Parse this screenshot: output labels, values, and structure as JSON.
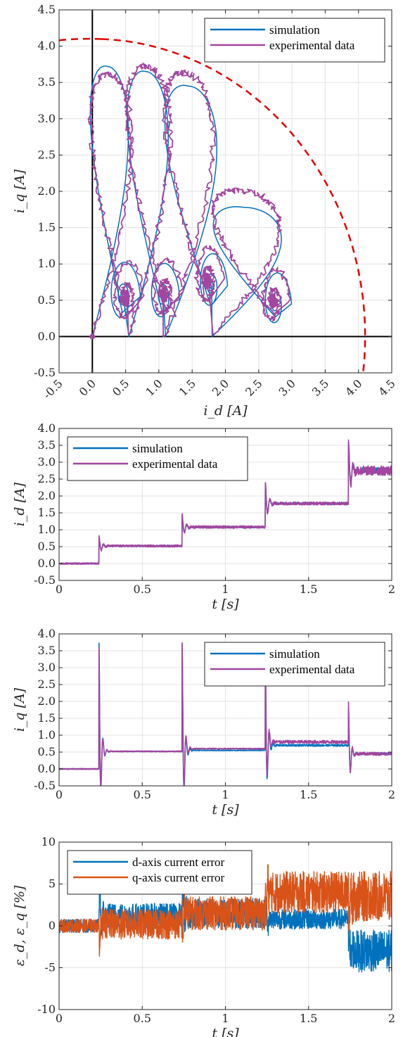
{
  "chart_data": [
    {
      "type": "line",
      "title": "",
      "xlabel": "i_d [A]",
      "ylabel": "i_q [A]",
      "xlim": [
        -0.5,
        4.5
      ],
      "ylim": [
        -0.5,
        4.5
      ],
      "xticks": [
        "-0.5",
        "0.0",
        "0.5",
        "1.0",
        "1.5",
        "2.0",
        "2.5",
        "3.0",
        "3.5",
        "4.0",
        "4.5"
      ],
      "yticks": [
        "-0.5",
        "0.0",
        "0.5",
        "1.0",
        "1.5",
        "2.0",
        "2.5",
        "3.0",
        "3.5",
        "4.0",
        "4.5"
      ],
      "grid": true,
      "legend_position": "top-right",
      "circle_limit_radius": 4.1,
      "series": [
        {
          "name": "simulation",
          "color": "#0072BD",
          "loops": [
            {
              "cx": 0.0,
              "peak": 3.72,
              "sx": 0.45,
              "sy": 0.55
            },
            {
              "cx": 0.55,
              "peak": 3.65,
              "sx": 1.05,
              "sy": 0.55
            },
            {
              "cx": 1.1,
              "peak": 3.45,
              "sx": 1.78,
              "sy": 0.7
            },
            {
              "cx": 1.8,
              "peak": 1.78,
              "sx": 2.75,
              "sy": 0.45
            }
          ]
        },
        {
          "name": "experimental data",
          "color": "#A2469F",
          "loops": [
            {
              "cx": 0.0,
              "peak": 3.6,
              "sx": 0.5,
              "sy": 0.55
            },
            {
              "cx": 0.55,
              "peak": 3.72,
              "sx": 1.08,
              "sy": 0.6
            },
            {
              "cx": 1.1,
              "peak": 3.62,
              "sx": 1.72,
              "sy": 0.78
            },
            {
              "cx": 1.8,
              "peak": 2.0,
              "sx": 2.72,
              "sy": 0.5
            }
          ]
        }
      ]
    },
    {
      "type": "line",
      "title": "",
      "xlabel": "t [s]",
      "ylabel": "i_d [A]",
      "xlim": [
        0,
        2
      ],
      "ylim": [
        -0.5,
        4.0
      ],
      "xticks": [
        "0",
        "0.5",
        "1",
        "1.5",
        "2"
      ],
      "yticks": [
        "-0.5",
        "0.0",
        "0.5",
        "1.0",
        "1.5",
        "2.0",
        "2.5",
        "3.0",
        "3.5",
        "4.0"
      ],
      "grid": true,
      "legend_position": "top-left",
      "step_times": [
        0,
        0.24,
        0.74,
        1.24,
        1.74
      ],
      "series": [
        {
          "name": "simulation",
          "color": "#0072BD",
          "levels": [
            0.0,
            0.52,
            1.08,
            1.78,
            2.75
          ],
          "overshoot": [
            0.0,
            0.78,
            1.42,
            2.38,
            3.6
          ]
        },
        {
          "name": "experimental data",
          "color": "#A2469F",
          "levels": [
            0.0,
            0.52,
            1.08,
            1.78,
            2.75
          ],
          "overshoot": [
            0.0,
            0.8,
            1.45,
            2.4,
            3.62
          ]
        }
      ]
    },
    {
      "type": "line",
      "title": "",
      "xlabel": "t [s]",
      "ylabel": "i_q [A]",
      "xlim": [
        0,
        2
      ],
      "ylim": [
        -0.5,
        4.0
      ],
      "xticks": [
        "0",
        "0.5",
        "1",
        "1.5",
        "2"
      ],
      "yticks": [
        "-0.5",
        "0.0",
        "0.5",
        "1.0",
        "1.5",
        "2.0",
        "2.5",
        "3.0",
        "3.5",
        "4.0"
      ],
      "grid": true,
      "legend_position": "top-right",
      "step_times": [
        0,
        0.24,
        0.74,
        1.24,
        1.74
      ],
      "series": [
        {
          "name": "simulation",
          "color": "#0072BD",
          "levels": [
            0.0,
            0.52,
            0.55,
            0.7,
            0.45
          ],
          "spikes": [
            0.0,
            3.72,
            3.72,
            3.45,
            1.78
          ]
        },
        {
          "name": "experimental data",
          "color": "#A2469F",
          "levels": [
            0.0,
            0.52,
            0.6,
            0.8,
            0.45
          ],
          "spikes": [
            0.0,
            3.6,
            3.72,
            3.62,
            2.0
          ]
        }
      ]
    },
    {
      "type": "line",
      "title": "",
      "xlabel": "t [s]",
      "ylabel": "ε_d, ε_q [%]",
      "xlim": [
        0,
        2
      ],
      "ylim": [
        -10,
        10
      ],
      "xticks": [
        "0",
        "0.5",
        "1",
        "1.5",
        "2"
      ],
      "yticks": [
        "-10",
        "-5",
        "0",
        "5",
        "10"
      ],
      "grid": true,
      "legend_position": "top-left",
      "step_times": [
        0,
        0.24,
        0.74,
        1.24,
        1.74
      ],
      "series": [
        {
          "name": "d-axis current error",
          "color": "#0072BD",
          "levels": [
            0.0,
            1.2,
            1.5,
            0.8,
            -3.0
          ],
          "amplitude": [
            0.8,
            1.5,
            1.8,
            1.2,
            2.5
          ]
        },
        {
          "name": "q-axis current error",
          "color": "#D95319",
          "levels": [
            0.0,
            0.2,
            1.5,
            4.0,
            3.5
          ],
          "amplitude": [
            0.8,
            1.8,
            2.0,
            2.5,
            3.0
          ]
        }
      ]
    }
  ]
}
